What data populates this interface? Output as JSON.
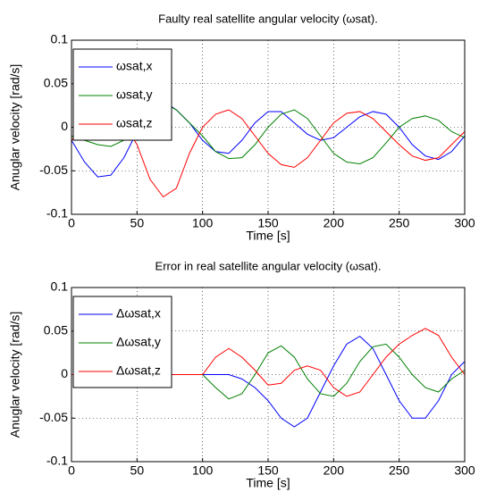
{
  "chart_data": [
    {
      "type": "line",
      "title": "Faulty real satellite angular velocity (ωsat).",
      "x_label": "Time [s]",
      "y_label": "Anuglar velocity [rad/s]",
      "x": [
        0,
        10,
        20,
        30,
        40,
        50,
        60,
        70,
        80,
        90,
        100,
        110,
        120,
        130,
        140,
        150,
        160,
        170,
        180,
        190,
        200,
        210,
        220,
        230,
        240,
        250,
        260,
        270,
        280,
        290,
        300
      ],
      "series": [
        {
          "name": "ωsat,x",
          "color": "#0000ff",
          "values": [
            -0.015,
            -0.04,
            -0.057,
            -0.055,
            -0.035,
            -0.005,
            0.02,
            0.03,
            0.02,
            0.005,
            -0.015,
            -0.028,
            -0.03,
            -0.015,
            0.005,
            0.018,
            0.018,
            0.005,
            -0.008,
            -0.015,
            -0.012,
            0,
            0.012,
            0.018,
            0.015,
            0,
            -0.02,
            -0.033,
            -0.037,
            -0.028,
            -0.01
          ]
        },
        {
          "name": "ωsat,y",
          "color": "#008000",
          "values": [
            -0.01,
            -0.015,
            -0.02,
            -0.022,
            -0.015,
            0,
            0.02,
            0.028,
            0.02,
            0.005,
            -0.01,
            -0.028,
            -0.036,
            -0.035,
            -0.02,
            0,
            0.015,
            0.02,
            0.01,
            -0.01,
            -0.03,
            -0.04,
            -0.042,
            -0.035,
            -0.018,
            0,
            0.01,
            0.013,
            0.008,
            -0.005,
            -0.012
          ]
        },
        {
          "name": "ωsat,z",
          "color": "#ff0000",
          "values": [
            -0.015,
            0,
            0.015,
            0.02,
            0.005,
            -0.02,
            -0.06,
            -0.08,
            -0.07,
            -0.03,
            0,
            0.015,
            0.02,
            0.01,
            -0.01,
            -0.03,
            -0.043,
            -0.046,
            -0.035,
            -0.015,
            0.005,
            0.016,
            0.018,
            0.01,
            -0.005,
            -0.02,
            -0.033,
            -0.038,
            -0.035,
            -0.02,
            -0.005
          ]
        }
      ],
      "xlim": [
        0,
        300
      ],
      "xticks": [
        0,
        50,
        100,
        150,
        200,
        250,
        300
      ],
      "ylim": [
        -0.1,
        0.1
      ],
      "yticks": [
        -0.1,
        -0.05,
        0,
        0.05,
        0.1
      ],
      "grid": true,
      "legend": "upper left"
    },
    {
      "type": "line",
      "title": "Error in real satellite angular velocity (ωsat).",
      "x_label": "Time [s]",
      "y_label": "Anuglar velocity [rad/s]",
      "x": [
        0,
        10,
        20,
        30,
        40,
        50,
        60,
        70,
        80,
        90,
        100,
        110,
        120,
        130,
        140,
        150,
        160,
        170,
        180,
        190,
        200,
        210,
        220,
        230,
        240,
        250,
        260,
        270,
        280,
        290,
        300
      ],
      "series": [
        {
          "name": "Δωsat,x",
          "color": "#0000ff",
          "values": [
            0,
            0,
            0,
            0,
            0,
            0,
            0,
            0,
            0,
            0,
            0,
            0,
            0,
            -0.005,
            -0.015,
            -0.03,
            -0.05,
            -0.06,
            -0.05,
            -0.02,
            0.01,
            0.035,
            0.044,
            0.03,
            0,
            -0.03,
            -0.05,
            -0.05,
            -0.03,
            0,
            0.015
          ]
        },
        {
          "name": "Δωsat,y",
          "color": "#008000",
          "values": [
            0,
            0,
            0,
            0,
            0,
            0,
            0,
            0,
            0,
            0,
            0,
            -0.015,
            -0.028,
            -0.022,
            0,
            0.025,
            0.033,
            0.02,
            -0.005,
            -0.022,
            -0.025,
            -0.01,
            0.015,
            0.032,
            0.035,
            0.02,
            0,
            -0.015,
            -0.02,
            -0.005,
            0.005
          ]
        },
        {
          "name": "Δωsat,z",
          "color": "#ff0000",
          "values": [
            0,
            0,
            0,
            0,
            0,
            0,
            0,
            0,
            0,
            0,
            0,
            0.02,
            0.03,
            0.02,
            0.005,
            -0.012,
            -0.01,
            0.005,
            0.01,
            0.005,
            -0.015,
            -0.025,
            -0.02,
            0,
            0.02,
            0.035,
            0.045,
            0.053,
            0.045,
            0.02,
            0
          ]
        }
      ],
      "xlim": [
        0,
        300
      ],
      "xticks": [
        0,
        50,
        100,
        150,
        200,
        250,
        300
      ],
      "ylim": [
        -0.1,
        0.1
      ],
      "yticks": [
        -0.1,
        -0.05,
        0,
        0.05,
        0.1
      ],
      "grid": true,
      "legend": "upper left"
    }
  ]
}
